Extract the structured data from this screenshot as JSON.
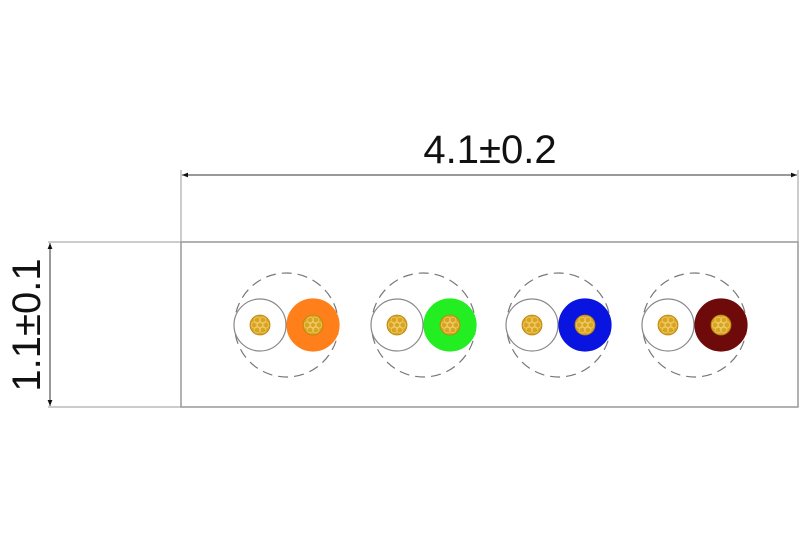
{
  "dimensions": {
    "width_label": "4.1±0.2",
    "height_label": "1.1±0.1"
  },
  "pairs": [
    {
      "insulation_colors": [
        "#ffffff",
        "#ff7f1a"
      ]
    },
    {
      "insulation_colors": [
        "#ffffff",
        "#22ee22"
      ]
    },
    {
      "insulation_colors": [
        "#ffffff",
        "#0a14e0"
      ]
    },
    {
      "insulation_colors": [
        "#ffffff",
        "#6e0a0a"
      ]
    }
  ],
  "colors": {
    "conductor": "#d9a520",
    "outline": "#888888",
    "dimension_line": "#333333"
  }
}
